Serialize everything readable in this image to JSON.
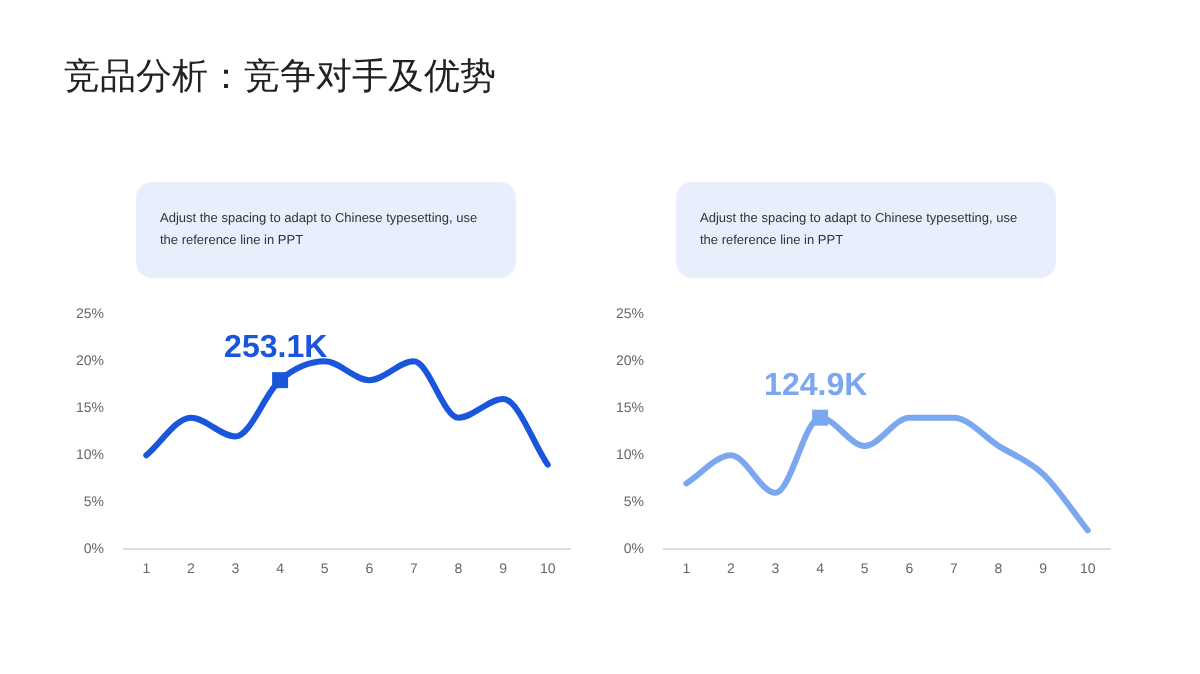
{
  "chart_data": [
    {
      "type": "line",
      "title": "竞品分析：竞争对手及优势",
      "categories": [
        "1",
        "2",
        "3",
        "4",
        "5",
        "6",
        "7",
        "8",
        "9",
        "10"
      ],
      "series": [
        {
          "color": "#1a56db",
          "values": [
            10,
            14,
            12,
            18,
            20,
            18,
            20,
            14,
            16,
            9
          ]
        }
      ],
      "ylim": [
        0,
        25
      ],
      "yticks": [
        {
          "value": 0,
          "label": "0%"
        },
        {
          "value": 5,
          "label": "5%"
        },
        {
          "value": 10,
          "label": "10%"
        },
        {
          "value": 15,
          "label": "15%"
        },
        {
          "value": 20,
          "label": "20%"
        },
        {
          "value": 25,
          "label": "25%"
        }
      ],
      "grid": false,
      "legend": false,
      "marker": "none",
      "annotations": [
        "Adjust the spacing to adapt to Chinese typesetting, use the reference line in PPT",
        {
          "text": "253.1K",
          "x": "4",
          "y": 18
        }
      ]
    },
    {
      "type": "line",
      "categories": [
        "1",
        "2",
        "3",
        "4",
        "5",
        "6",
        "7",
        "8",
        "9",
        "10"
      ],
      "series": [
        {
          "color": "#7ba7f0",
          "values": [
            7,
            10,
            6,
            14,
            11,
            14,
            14,
            11,
            8,
            2
          ]
        }
      ],
      "ylim": [
        0,
        25
      ],
      "yticks": [
        {
          "value": 0,
          "label": "0%"
        },
        {
          "value": 5,
          "label": "5%"
        },
        {
          "value": 10,
          "label": "10%"
        },
        {
          "value": 15,
          "label": "15%"
        },
        {
          "value": 20,
          "label": "20%"
        },
        {
          "value": 25,
          "label": "25%"
        }
      ],
      "grid": false,
      "legend": false,
      "marker": "none",
      "annotations": [
        "Adjust the spacing to adapt to Chinese typesetting, use the reference line in PPT",
        {
          "text": "124.9K",
          "x": "4",
          "y": 14
        }
      ]
    }
  ]
}
